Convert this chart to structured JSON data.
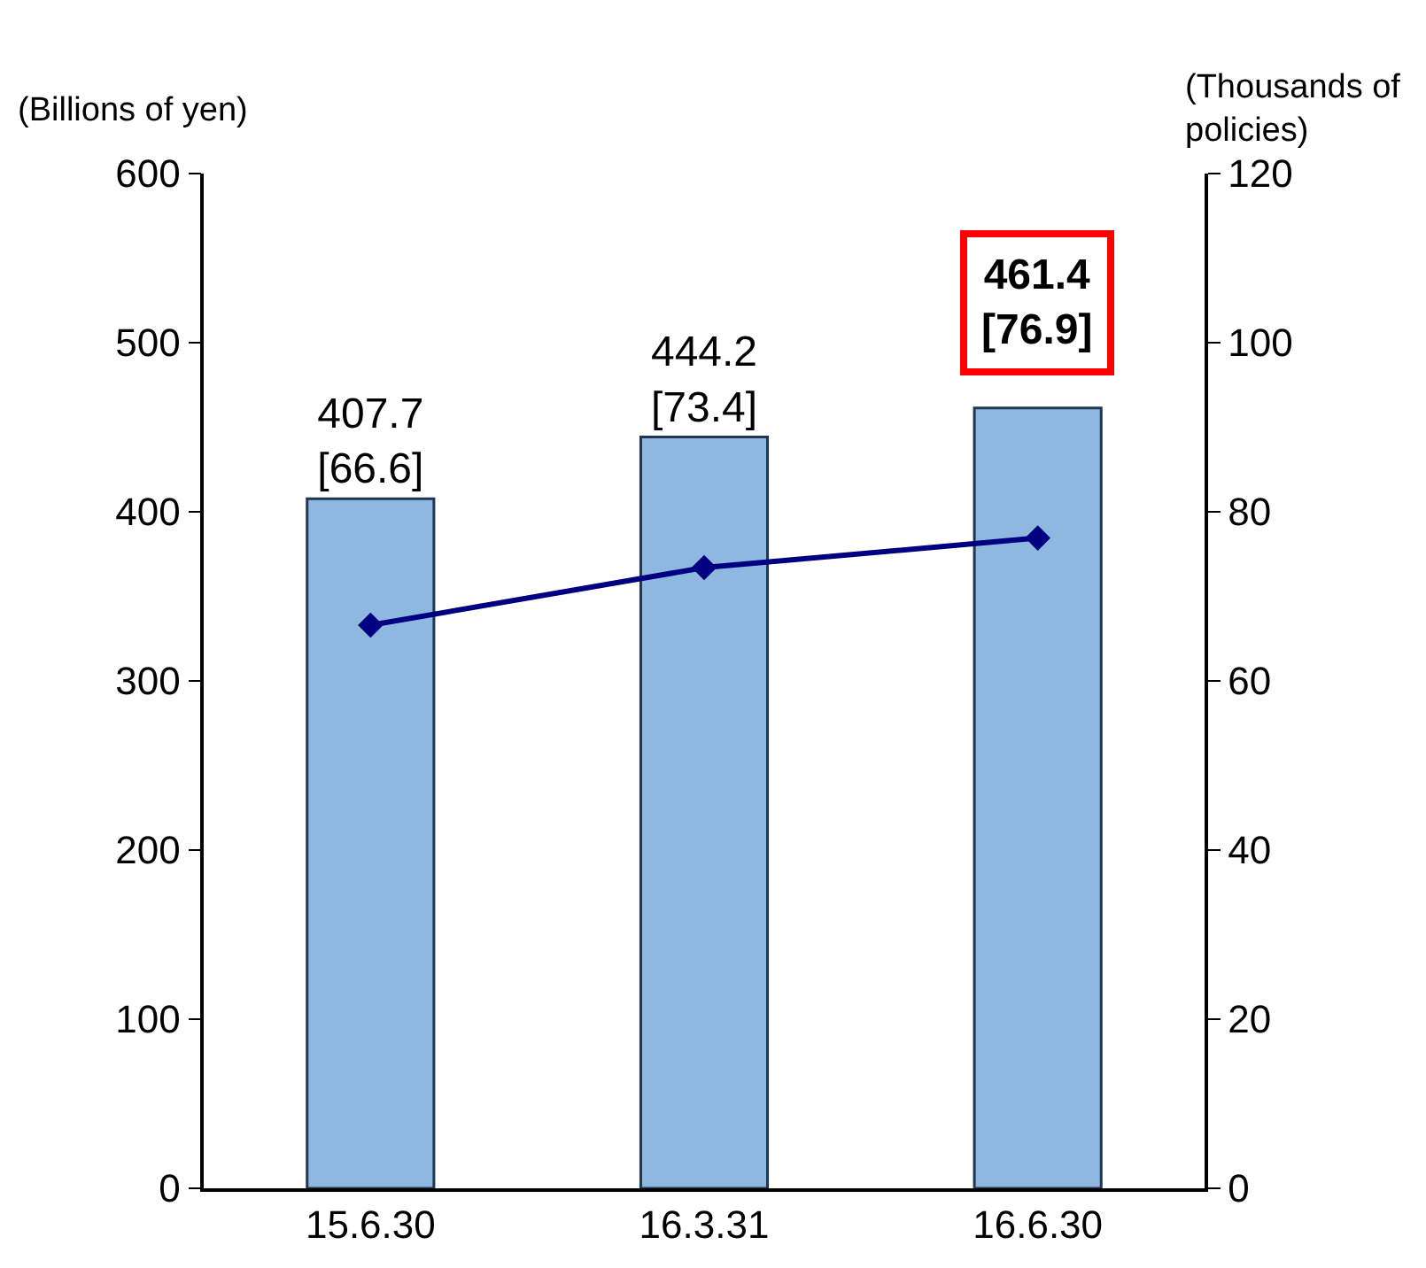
{
  "chart_data": {
    "type": "bar",
    "categories": [
      "15.6.30",
      "16.3.31",
      "16.6.30"
    ],
    "series": [
      {
        "color": "#8fb8e0",
        "values": [
          407.7,
          444.2,
          461.4
        ],
        "value_labels": [
          "407.7\n[66.6]",
          "444.2\n[73.4]",
          null
        ]
      },
      {
        "type": "line",
        "axis": "y2",
        "color": "#000080",
        "values": [
          66.6,
          73.4,
          76.9
        ],
        "marker": "diamond"
      }
    ],
    "annotations": [
      {
        "text": "461.4\n[76.9]",
        "x": "16.6.30",
        "y": 461.4
      }
    ],
    "ylabel": "(Billions of yen)",
    "y2label": "(Thousands of\npolicies)",
    "ylim": [
      0,
      600
    ],
    "yticks": [
      0,
      100,
      200,
      300,
      400,
      500,
      600
    ],
    "y2lim": [
      0,
      120
    ],
    "y2ticks": [
      0,
      20,
      40,
      60,
      80,
      100,
      120
    ]
  }
}
